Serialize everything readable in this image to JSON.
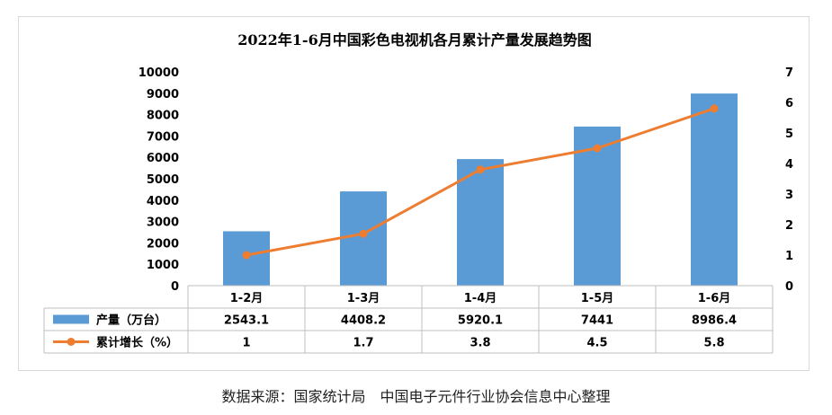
{
  "chart_data": {
    "type": "bar",
    "title": "2022年1-6月中国彩色电视机各月累计产量发展趋势图",
    "categories": [
      "1-2月",
      "1-3月",
      "1-4月",
      "1-5月",
      "1-6月"
    ],
    "series": [
      {
        "name": "产量（万台）",
        "type": "bar",
        "axis": "left",
        "color": "#5b9bd5",
        "values": [
          2543.1,
          4408.2,
          5920.1,
          7441,
          8986.4
        ]
      },
      {
        "name": "累计增长（%）",
        "type": "line",
        "axis": "right",
        "color": "#ed7d31",
        "values": [
          1,
          1.7,
          3.8,
          4.5,
          5.8
        ]
      }
    ],
    "y_left": {
      "min": 0,
      "max": 10000,
      "step": 1000,
      "ticks": [
        "0",
        "1000",
        "2000",
        "3000",
        "4000",
        "5000",
        "6000",
        "7000",
        "8000",
        "9000",
        "10000"
      ]
    },
    "y_right": {
      "min": 0,
      "max": 7,
      "step": 1,
      "ticks": [
        "0",
        "1",
        "2",
        "3",
        "4",
        "5",
        "6",
        "7"
      ]
    },
    "data_table": {
      "rows": [
        {
          "label": "产量（万台）",
          "cells": [
            "2543.1",
            "4408.2",
            "5920.1",
            "7441",
            "8986.4"
          ]
        },
        {
          "label": "累计增长（%）",
          "cells": [
            "1",
            "1.7",
            "3.8",
            "4.5",
            "5.8"
          ]
        }
      ]
    },
    "legend_placement": "data-table",
    "grid": false
  },
  "source_note": "数据来源：国家统计局　中国电子元件行业协会信息中心整理",
  "watermark_text": "中国电子元件行业协会"
}
